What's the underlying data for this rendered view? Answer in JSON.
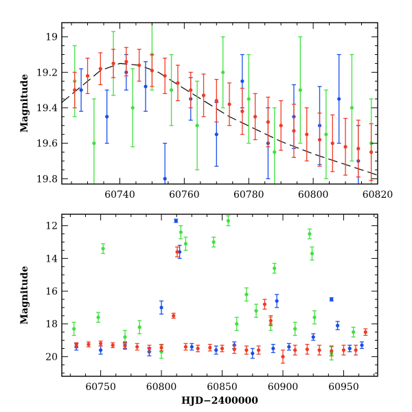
{
  "chart_data": [
    {
      "type": "scatter",
      "title": "",
      "xlabel": "",
      "ylabel": "Magnitude",
      "xlim": [
        60722,
        60820
      ],
      "ylim": [
        19.83,
        18.92
      ],
      "y_inverted": true,
      "grid": false,
      "legend": "none",
      "xticks": [
        60740,
        60760,
        60780,
        60800,
        60820
      ],
      "yticks": [
        19,
        19.2,
        19.4,
        19.6,
        19.8
      ],
      "model_curve": {
        "color": "#000000",
        "style": "long-dash",
        "x": [
          60722,
          60728,
          60734,
          60740,
          60746,
          60752,
          60758,
          60766,
          60774,
          60782,
          60790,
          60800,
          60810,
          60820
        ],
        "y": [
          19.37,
          19.28,
          19.19,
          19.15,
          19.16,
          19.2,
          19.27,
          19.36,
          19.45,
          19.52,
          19.59,
          19.66,
          19.72,
          19.78
        ]
      },
      "series": [
        {
          "color": "#1a4ee8",
          "x": [
            60728,
            60736,
            60742,
            60748,
            60754,
            60762,
            60770,
            60778,
            60786,
            60794,
            60802,
            60808,
            60814
          ],
          "y": [
            19.3,
            19.45,
            19.2,
            19.28,
            19.8,
            19.35,
            19.55,
            19.25,
            19.6,
            19.45,
            19.5,
            19.35,
            19.7
          ],
          "err": [
            0.12,
            0.15,
            0.1,
            0.14,
            0.2,
            0.12,
            0.18,
            0.15,
            0.2,
            0.18,
            0.22,
            0.25,
            0.2
          ]
        },
        {
          "color": "#3fe03f",
          "x": [
            60726,
            60732,
            60738,
            60744,
            60750,
            60756,
            60764,
            60772,
            60780,
            60788,
            60796,
            60804,
            60812,
            60818
          ],
          "y": [
            19.25,
            19.6,
            19.15,
            19.4,
            19.1,
            19.3,
            19.5,
            19.2,
            19.35,
            19.65,
            19.3,
            19.55,
            19.4,
            19.6
          ],
          "err": [
            0.2,
            0.25,
            0.18,
            0.22,
            0.2,
            0.2,
            0.25,
            0.2,
            0.25,
            0.25,
            0.3,
            0.25,
            0.3,
            0.25
          ]
        },
        {
          "color": "#f03a24",
          "x": [
            60726,
            60730,
            60734,
            60738,
            60742,
            60746,
            60750,
            60754,
            60758,
            60762,
            60766,
            60770,
            60774,
            60778,
            60782,
            60786,
            60790,
            60794,
            60798,
            60802,
            60806,
            60810,
            60814,
            60818
          ],
          "y": [
            19.3,
            19.22,
            19.18,
            19.15,
            19.14,
            19.16,
            19.19,
            19.22,
            19.26,
            19.3,
            19.33,
            19.36,
            19.38,
            19.42,
            19.45,
            19.48,
            19.5,
            19.53,
            19.55,
            19.58,
            19.6,
            19.62,
            19.63,
            19.65
          ],
          "err": [
            0.1,
            0.1,
            0.09,
            0.08,
            0.08,
            0.09,
            0.09,
            0.1,
            0.1,
            0.1,
            0.12,
            0.12,
            0.12,
            0.13,
            0.13,
            0.14,
            0.14,
            0.15,
            0.15,
            0.15,
            0.16,
            0.16,
            0.16,
            0.16
          ]
        }
      ]
    },
    {
      "type": "scatter",
      "title": "",
      "xlabel": "HJD−2400000",
      "ylabel": "Magnitude",
      "xlim": [
        60718,
        60978
      ],
      "ylim": [
        21.2,
        11.3
      ],
      "y_inverted": true,
      "grid": false,
      "legend": "none",
      "xticks": [
        60750,
        60800,
        60850,
        60900,
        60950
      ],
      "yticks": [
        12,
        14,
        16,
        18,
        20
      ],
      "series": [
        {
          "color": "#1a4ee8",
          "x": [
            60730,
            60750,
            60770,
            60790,
            60800,
            60812,
            60815,
            60825,
            60845,
            60860,
            60875,
            60892,
            60895,
            60905,
            60925,
            60940,
            60945,
            60955,
            60965
          ],
          "y": [
            19.4,
            19.6,
            19.3,
            19.7,
            17.0,
            11.7,
            13.6,
            19.4,
            19.6,
            19.3,
            19.8,
            19.5,
            16.6,
            19.4,
            18.8,
            16.5,
            18.1,
            19.5,
            19.3
          ],
          "err": [
            0.2,
            0.25,
            0.2,
            0.25,
            0.4,
            0.1,
            0.4,
            0.2,
            0.25,
            0.2,
            0.3,
            0.25,
            0.4,
            0.2,
            0.2,
            0.1,
            0.25,
            0.2,
            0.2
          ]
        },
        {
          "color": "#3fe03f",
          "x": [
            60728,
            60748,
            60752,
            60770,
            60782,
            60800,
            60816,
            60820,
            60843,
            60855,
            60862,
            60870,
            60878,
            60890,
            60893,
            60910,
            60922,
            60924,
            60926,
            60940,
            60958
          ],
          "y": [
            18.3,
            17.6,
            13.4,
            18.8,
            18.2,
            19.7,
            12.4,
            13.1,
            13.0,
            11.7,
            18.0,
            16.2,
            17.2,
            18.0,
            14.6,
            18.3,
            12.5,
            13.7,
            17.6,
            19.8,
            18.5
          ],
          "err": [
            0.4,
            0.3,
            0.3,
            0.4,
            0.4,
            0.4,
            0.4,
            0.4,
            0.3,
            0.3,
            0.4,
            0.4,
            0.4,
            0.4,
            0.3,
            0.4,
            0.3,
            0.4,
            0.4,
            0.4,
            0.3
          ]
        },
        {
          "color": "#f03a24",
          "x": [
            60730,
            60740,
            60750,
            60760,
            60770,
            60780,
            60790,
            60800,
            60810,
            60813,
            60820,
            60830,
            60840,
            60850,
            60860,
            60870,
            60880,
            60885,
            60890,
            60900,
            60910,
            60920,
            60930,
            60940,
            60950,
            60960,
            60968
          ],
          "y": [
            19.3,
            19.25,
            19.2,
            19.3,
            19.35,
            19.4,
            19.5,
            19.45,
            17.5,
            13.6,
            19.4,
            19.5,
            19.45,
            19.5,
            19.55,
            19.6,
            19.6,
            16.8,
            17.8,
            20.0,
            19.6,
            19.55,
            19.6,
            19.65,
            19.6,
            19.6,
            18.5
          ],
          "err": [
            0.15,
            0.15,
            0.15,
            0.15,
            0.2,
            0.2,
            0.2,
            0.2,
            0.15,
            0.3,
            0.2,
            0.2,
            0.2,
            0.2,
            0.25,
            0.25,
            0.25,
            0.3,
            0.3,
            0.4,
            0.3,
            0.3,
            0.3,
            0.3,
            0.3,
            0.3,
            0.2
          ]
        }
      ]
    }
  ]
}
